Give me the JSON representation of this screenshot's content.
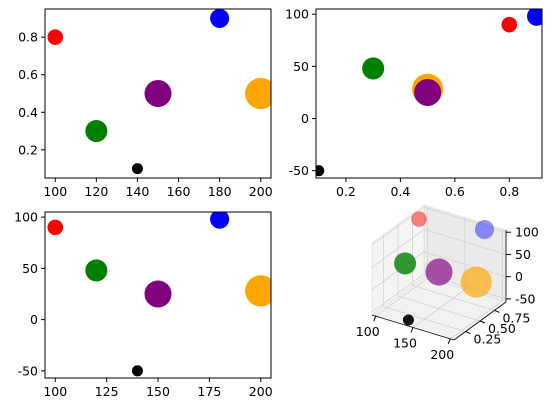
{
  "figure": {
    "layout": "2x2 subplots"
  },
  "colors": {
    "red": "#ff0000",
    "blue": "#0000ff",
    "green": "#008000",
    "purple": "#800080",
    "orange": "#ffa500",
    "black": "#000000"
  },
  "chart_data": [
    {
      "id": "top-left",
      "type": "scatter",
      "title": "",
      "xlabel": "",
      "ylabel": "",
      "xlim": [
        95,
        205
      ],
      "ylim": [
        0.05,
        0.95
      ],
      "xticks": [
        100,
        120,
        140,
        160,
        180,
        200
      ],
      "yticks": [
        0.2,
        0.4,
        0.6,
        0.8
      ],
      "grid": false,
      "points": [
        {
          "x": 100,
          "y": 0.8,
          "color": "#ff0000",
          "size": 100
        },
        {
          "x": 120,
          "y": 0.3,
          "color": "#008000",
          "size": 200
        },
        {
          "x": 140,
          "y": 0.1,
          "color": "#000000",
          "size": 50
        },
        {
          "x": 150,
          "y": 0.5,
          "color": "#800080",
          "size": 300
        },
        {
          "x": 180,
          "y": 0.9,
          "color": "#0000ff",
          "size": 150
        },
        {
          "x": 200,
          "y": 0.5,
          "color": "#ffa500",
          "size": 400
        }
      ]
    },
    {
      "id": "top-right",
      "type": "scatter",
      "title": "",
      "xlabel": "",
      "ylabel": "",
      "xlim": [
        0.09,
        0.92
      ],
      "ylim": [
        -57,
        105
      ],
      "xticks": [
        0.2,
        0.4,
        0.6,
        0.8
      ],
      "yticks": [
        -50,
        0,
        50,
        100
      ],
      "grid": false,
      "points": [
        {
          "x": 0.8,
          "y": 90,
          "color": "#ff0000",
          "size": 100
        },
        {
          "x": 0.3,
          "y": 48,
          "color": "#008000",
          "size": 200
        },
        {
          "x": 0.1,
          "y": -50,
          "color": "#000000",
          "size": 50
        },
        {
          "x": 0.5,
          "y": 28,
          "color": "#ffa500",
          "size": 400
        },
        {
          "x": 0.5,
          "y": 25,
          "color": "#800080",
          "size": 300
        },
        {
          "x": 0.9,
          "y": 98,
          "color": "#0000ff",
          "size": 150
        }
      ]
    },
    {
      "id": "bottom-left",
      "type": "scatter",
      "title": "",
      "xlabel": "",
      "ylabel": "",
      "xlim": [
        95,
        205
      ],
      "ylim": [
        -57,
        105
      ],
      "xticks": [
        100,
        125,
        150,
        175,
        200
      ],
      "yticks": [
        -50,
        0,
        50,
        100
      ],
      "grid": false,
      "points": [
        {
          "x": 100,
          "y": 90,
          "color": "#ff0000",
          "size": 100
        },
        {
          "x": 120,
          "y": 48,
          "color": "#008000",
          "size": 200
        },
        {
          "x": 140,
          "y": -50,
          "color": "#000000",
          "size": 50
        },
        {
          "x": 150,
          "y": 25,
          "color": "#800080",
          "size": 300
        },
        {
          "x": 180,
          "y": 98,
          "color": "#0000ff",
          "size": 150
        },
        {
          "x": 200,
          "y": 28,
          "color": "#ffa500",
          "size": 400
        }
      ]
    },
    {
      "id": "bottom-right",
      "type": "scatter3d",
      "title": "",
      "xlabel": "",
      "ylabel": "",
      "zlabel": "",
      "xlim": [
        95,
        205
      ],
      "ylim": [
        0.05,
        0.95
      ],
      "zlim": [
        -57,
        105
      ],
      "xticks": [
        100,
        150,
        200
      ],
      "yticks": [
        0.25,
        0.5,
        0.75
      ],
      "ytick_labels": [
        "0.25",
        "0.50",
        "0.75"
      ],
      "zticks": [
        -50,
        0,
        50,
        100
      ],
      "grid": true,
      "points": [
        {
          "x": 100,
          "y": 0.8,
          "z": 90,
          "color": "#ff0000",
          "size": 100
        },
        {
          "x": 120,
          "y": 0.3,
          "z": 48,
          "color": "#008000",
          "size": 200
        },
        {
          "x": 140,
          "y": 0.1,
          "z": -50,
          "color": "#000000",
          "size": 50
        },
        {
          "x": 150,
          "y": 0.5,
          "z": 25,
          "color": "#800080",
          "size": 300
        },
        {
          "x": 180,
          "y": 0.9,
          "z": 98,
          "color": "#0000ff",
          "size": 150
        },
        {
          "x": 200,
          "y": 0.5,
          "z": 28,
          "color": "#ffa500",
          "size": 400
        }
      ]
    }
  ]
}
